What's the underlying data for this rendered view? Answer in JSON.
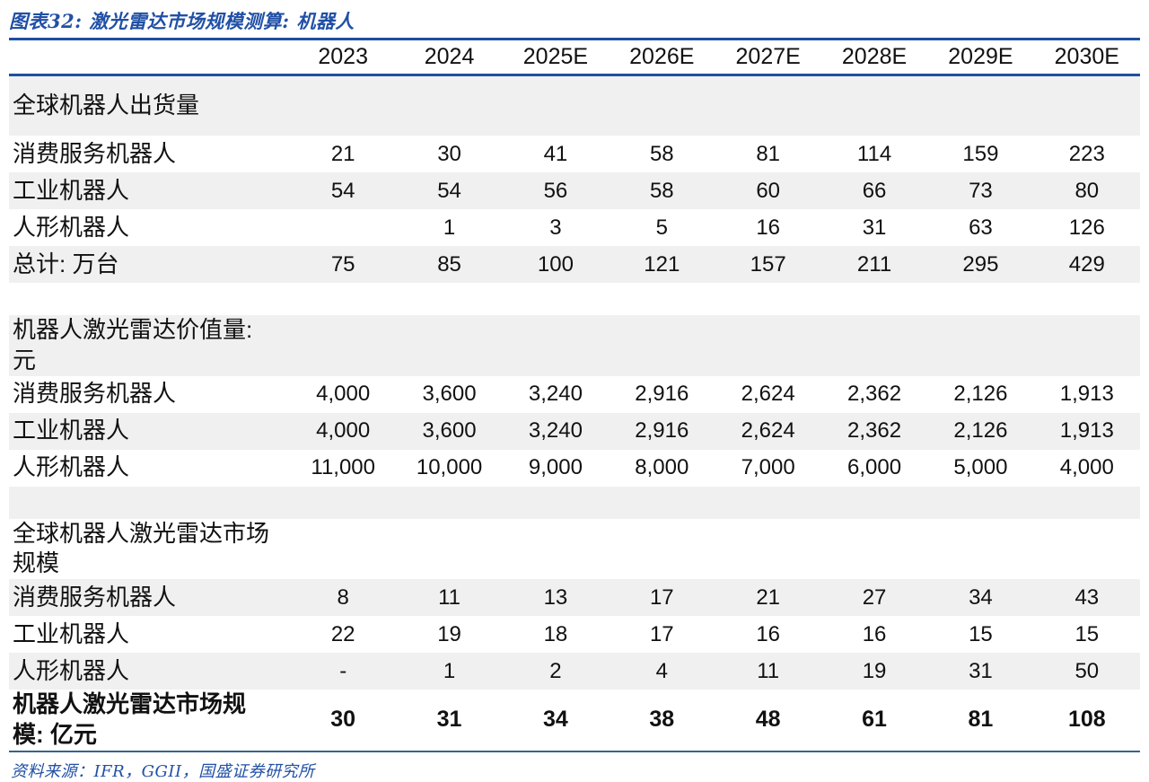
{
  "page": {
    "title": "图表32: 激光雷达市场规模测算: 机器人",
    "source": "资料来源：IFR，GGII，国盛证券研究所"
  },
  "colors": {
    "accent_line": "#1e4fa0",
    "footer_line": "#38638f",
    "title_blue": "#2150a6",
    "stripe": "#f0f0f0"
  },
  "table": {
    "year_headers": [
      "2023",
      "2024",
      "2025E",
      "2026E",
      "2027E",
      "2028E",
      "2029E",
      "2030E"
    ],
    "rows": [
      {
        "type": "section",
        "label": "全球机器人出货量",
        "values": [
          "",
          "",
          "",
          "",
          "",
          "",
          "",
          ""
        ]
      },
      {
        "type": "data",
        "label": "消费服务机器人",
        "values": [
          "21",
          "30",
          "41",
          "58",
          "81",
          "114",
          "159",
          "223"
        ]
      },
      {
        "type": "data",
        "label": "工业机器人",
        "values": [
          "54",
          "54",
          "56",
          "58",
          "60",
          "66",
          "73",
          "80"
        ]
      },
      {
        "type": "data",
        "label": "人形机器人",
        "values": [
          "",
          "1",
          "3",
          "5",
          "16",
          "31",
          "63",
          "126"
        ]
      },
      {
        "type": "data",
        "label": "总计: 万台",
        "values": [
          "75",
          "85",
          "100",
          "121",
          "157",
          "211",
          "295",
          "429"
        ]
      },
      {
        "type": "spacer",
        "label": "",
        "values": [
          "",
          "",
          "",
          "",
          "",
          "",
          "",
          ""
        ]
      },
      {
        "type": "section",
        "label": "机器人激光雷达价值量:\n元",
        "values": [
          "",
          "",
          "",
          "",
          "",
          "",
          "",
          ""
        ]
      },
      {
        "type": "data",
        "label": "消费服务机器人",
        "values": [
          "4,000",
          "3,600",
          "3,240",
          "2,916",
          "2,624",
          "2,362",
          "2,126",
          "1,913"
        ]
      },
      {
        "type": "data",
        "label": "工业机器人",
        "values": [
          "4,000",
          "3,600",
          "3,240",
          "2,916",
          "2,624",
          "2,362",
          "2,126",
          "1,913"
        ]
      },
      {
        "type": "data",
        "label": "人形机器人",
        "values": [
          "11,000",
          "10,000",
          "9,000",
          "8,000",
          "7,000",
          "6,000",
          "5,000",
          "4,000"
        ]
      },
      {
        "type": "spacer",
        "label": "",
        "values": [
          "",
          "",
          "",
          "",
          "",
          "",
          "",
          ""
        ]
      },
      {
        "type": "section",
        "label": "全球机器人激光雷达市场\n规模",
        "values": [
          "",
          "",
          "",
          "",
          "",
          "",
          "",
          ""
        ]
      },
      {
        "type": "data",
        "label": "消费服务机器人",
        "values": [
          "8",
          "11",
          "13",
          "17",
          "21",
          "27",
          "34",
          "43"
        ]
      },
      {
        "type": "data",
        "label": "工业机器人",
        "values": [
          "22",
          "19",
          "18",
          "17",
          "16",
          "16",
          "15",
          "15"
        ]
      },
      {
        "type": "data",
        "label": "人形机器人",
        "values": [
          "-",
          "1",
          "2",
          "4",
          "11",
          "19",
          "31",
          "50"
        ]
      },
      {
        "type": "total",
        "label": "机器人激光雷达市场规\n模: 亿元",
        "values": [
          "30",
          "31",
          "34",
          "38",
          "48",
          "61",
          "81",
          "108"
        ]
      }
    ]
  }
}
